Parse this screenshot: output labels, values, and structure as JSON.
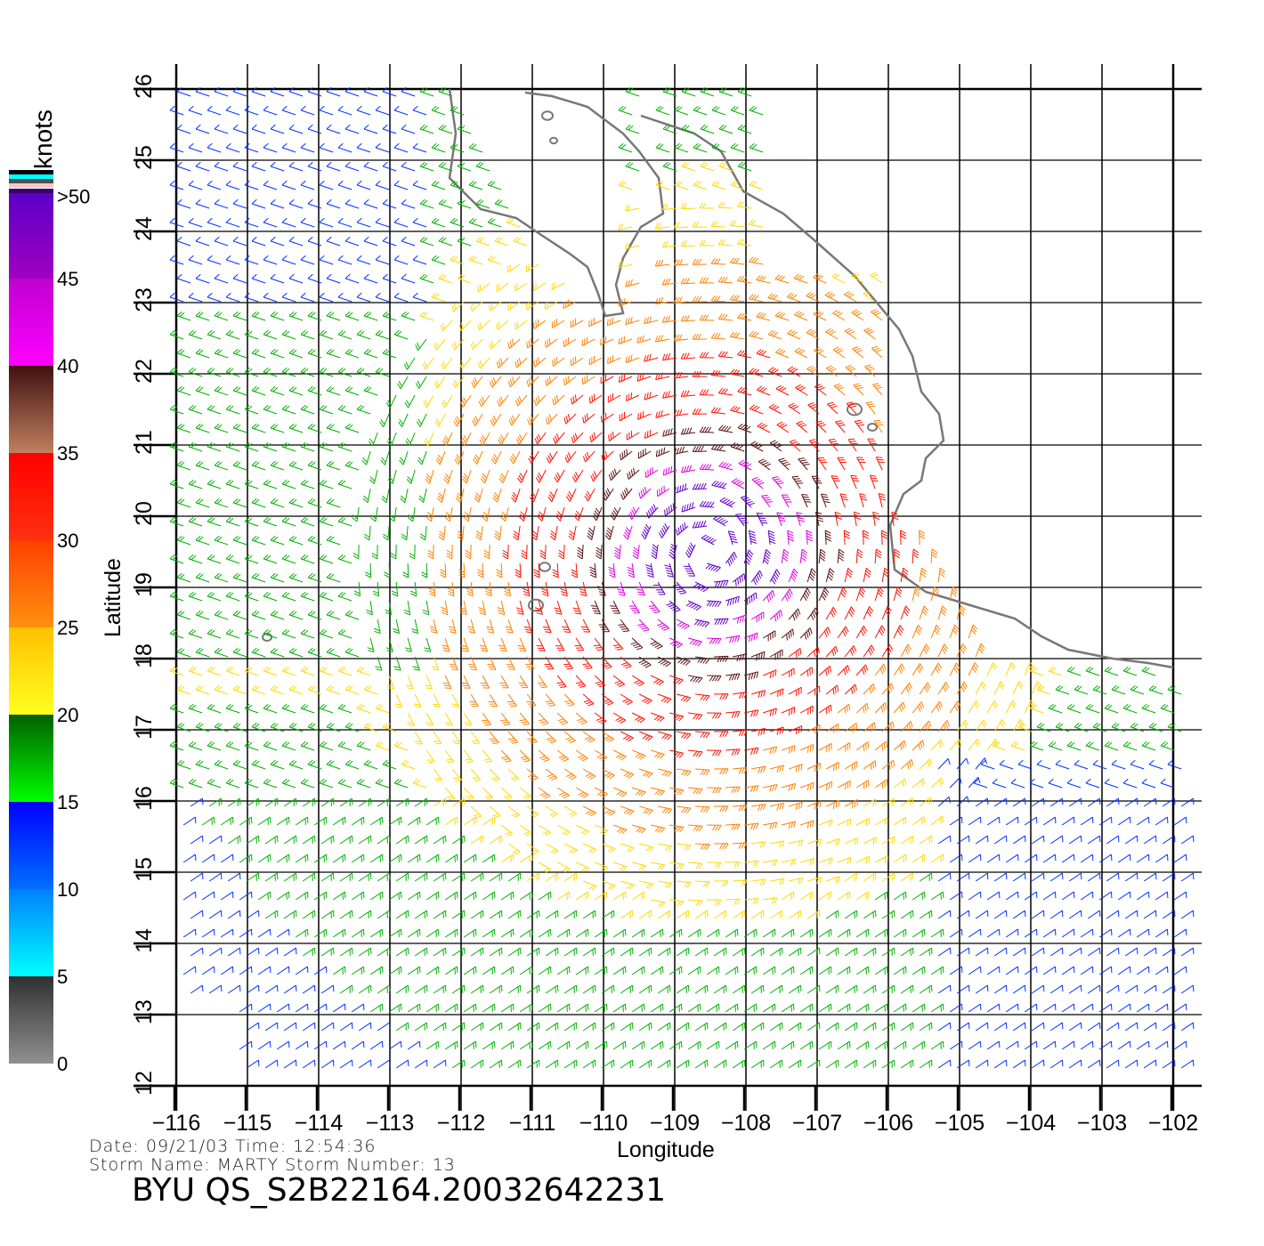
{
  "chart_data": {
    "type": "wind-barb-map",
    "xlabel": "Longitude",
    "ylabel": "Latitude",
    "xlim": [
      -116,
      -102
    ],
    "ylim": [
      12,
      26
    ],
    "grid": true,
    "x_ticks": [
      "−116",
      "−115",
      "−114",
      "−113",
      "−112",
      "−111",
      "−110",
      "−109",
      "−108",
      "−107",
      "−106",
      "−105",
      "−104",
      "−103",
      "−102"
    ],
    "y_ticks": [
      "12",
      "13",
      "14",
      "15",
      "16",
      "17",
      "18",
      "19",
      "20",
      "21",
      "22",
      "23",
      "24",
      "25",
      "26"
    ],
    "colorbar": {
      "title": "knots",
      "labels": [
        "0",
        "5",
        "10",
        "15",
        "20",
        "25",
        "30",
        "35",
        "40",
        "45",
        ">50"
      ],
      "colors": {
        "c0": "#8c8c8c",
        "c5": "#00ffff",
        "c10": "#0080ff",
        "c15": "#0000ff",
        "c20": "#00ff00",
        "c25": "#ffee00",
        "c30": "#ff7700",
        "c35": "#ff1010",
        "c40": "#4a1010",
        "c45": "#ff00ff",
        "c50": "#5a00c8"
      }
    }
  },
  "footer": {
    "date_line": "Date: 09/21/03   Time: 12:54:36",
    "storm_line": "Storm  Name:  MARTY    Storm  Number:  13",
    "product_id": "BYU  QS_S2B22164.20032642231"
  }
}
